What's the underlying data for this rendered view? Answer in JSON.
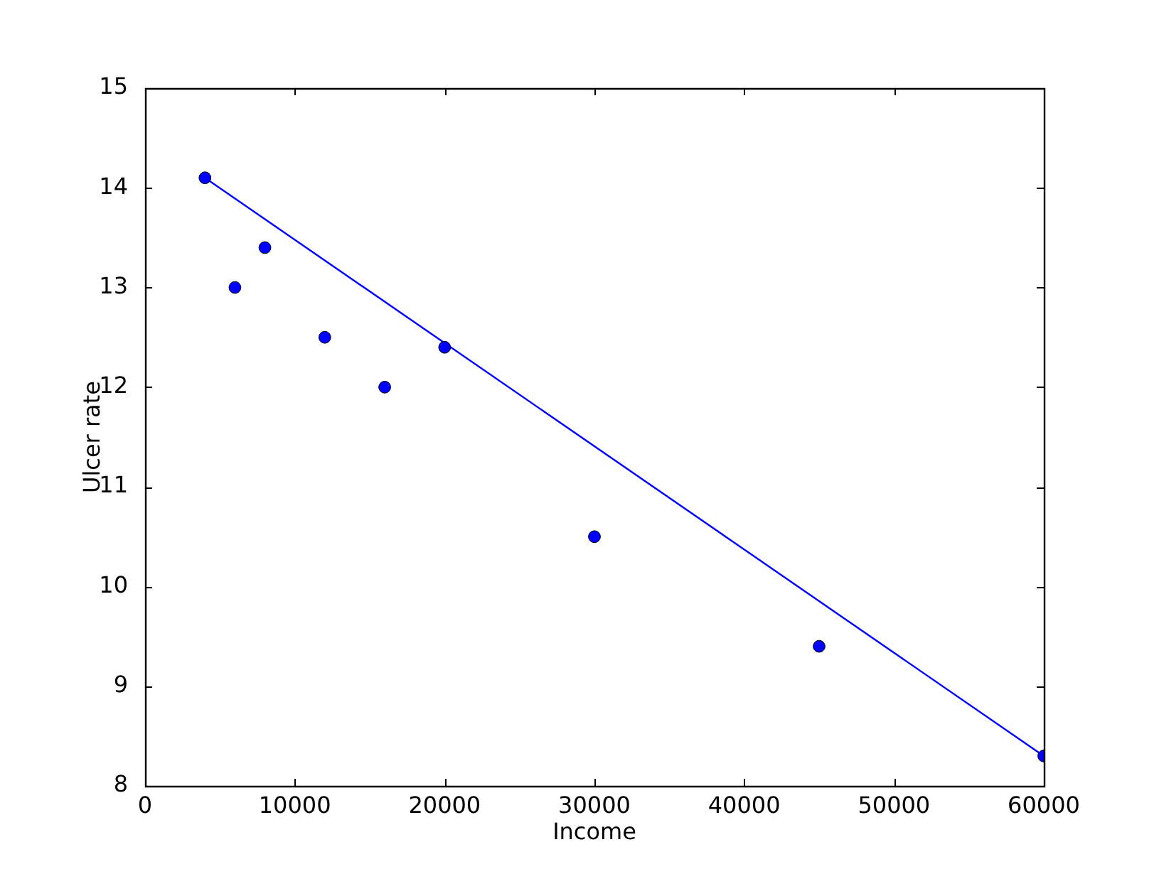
{
  "chart_data": {
    "type": "scatter",
    "xlabel": "Income",
    "ylabel": "Ulcer rate",
    "xlim": [
      0,
      60000
    ],
    "ylim": [
      8,
      15
    ],
    "xticks": [
      0,
      10000,
      20000,
      30000,
      40000,
      50000,
      60000
    ],
    "yticks": [
      8,
      9,
      10,
      11,
      12,
      13,
      14,
      15
    ],
    "grid": false,
    "legend": false,
    "series": [
      {
        "color": "#0000ff",
        "marker": "circle",
        "x": [
          4000,
          6000,
          8000,
          12000,
          16000,
          20000,
          30000,
          45000,
          60000
        ],
        "values": [
          14.1,
          13.0,
          13.4,
          12.5,
          12.0,
          12.4,
          10.5,
          9.4,
          8.3
        ]
      },
      {
        "type": "line",
        "color": "#0000ff",
        "marker": "none",
        "line_style": "solid",
        "x": [
          4000,
          60000
        ],
        "values": [
          14.1,
          8.3
        ]
      }
    ]
  }
}
